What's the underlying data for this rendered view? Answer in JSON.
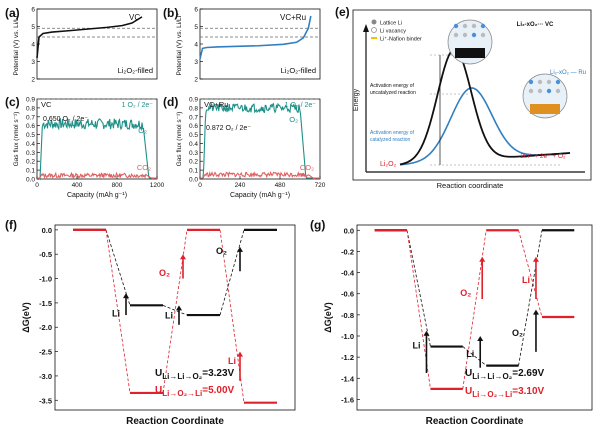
{
  "chart_data": [
    {
      "panel": "(a)",
      "type": "line",
      "ylabel": "Potential (V) vs. Li/Li⁺",
      "ylim": [
        2,
        6
      ],
      "yticks": [
        "2",
        "3",
        "4",
        "5",
        "6"
      ],
      "xlim": [
        0,
        1200
      ],
      "legend": "VC",
      "annotation": "Li₂O₂-filled",
      "dashed_lines": [
        4.9,
        4.4
      ],
      "series": [
        {
          "name": "VC",
          "color": "#111111",
          "x": [
            0,
            20,
            60,
            150,
            300,
            500,
            700,
            850,
            950,
            1050
          ],
          "y": [
            3.2,
            4.4,
            4.6,
            4.68,
            4.75,
            4.85,
            4.95,
            5.05,
            5.2,
            5.55
          ]
        }
      ]
    },
    {
      "panel": "(b)",
      "type": "line",
      "ylabel": "Potential (V) vs. Li/Li⁺",
      "ylim": [
        2,
        6
      ],
      "yticks": [
        "2",
        "3",
        "4",
        "5",
        "6"
      ],
      "xlim": [
        0,
        720
      ],
      "legend": "VC+Ru",
      "annotation": "Li₂O₂-filled",
      "dashed_lines": [
        4.9,
        4.4
      ],
      "series": [
        {
          "name": "VC+Ru",
          "color": "#2f7fc1",
          "x": [
            0,
            15,
            40,
            100,
            200,
            350,
            500,
            580,
            620,
            650,
            665
          ],
          "y": [
            3.15,
            3.75,
            3.8,
            3.83,
            3.86,
            3.9,
            3.98,
            4.1,
            4.35,
            4.9,
            5.6
          ]
        }
      ]
    },
    {
      "panel": "(c)",
      "type": "line",
      "ylabel": "Gas flux (nmol s⁻¹)",
      "xlabel": "Capacity (mAh g⁻¹)",
      "ylim": [
        0,
        0.9
      ],
      "yticks": [
        "0.0",
        "0.1",
        "0.2",
        "0.3",
        "0.4",
        "0.5",
        "0.6",
        "0.7",
        "0.8",
        "0.9"
      ],
      "xlim": [
        0,
        1200
      ],
      "xticks": [
        "0",
        "400",
        "800",
        "1200"
      ],
      "label": "VC",
      "ratio_ref": "1 O₂ / 2e⁻",
      "ratio_measured": "0.650 O₂ / 2e⁻",
      "series": [
        {
          "name": "O₂",
          "color": "#1e9088",
          "level": 0.62,
          "start": 30,
          "end": 1060
        },
        {
          "name": "CO₂",
          "color": "#e06060",
          "level": 0.04,
          "start": 20,
          "end": 1100
        }
      ]
    },
    {
      "panel": "(d)",
      "type": "line",
      "ylabel": "Gas flux (nmol s⁻¹)",
      "xlabel": "Capacity (mAh g⁻¹)",
      "ylim": [
        0,
        0.9
      ],
      "yticks": [
        "0.0",
        "0.1",
        "0.2",
        "0.3",
        "0.4",
        "0.5",
        "0.6",
        "0.7",
        "0.8",
        "0.9"
      ],
      "xlim": [
        0,
        720
      ],
      "xticks": [
        "0",
        "240",
        "480",
        "720"
      ],
      "label": "VC+Ru",
      "ratio_ref": "1 O₂ / 2e⁻",
      "ratio_measured": "0.872 O₂ / 2e⁻",
      "series": [
        {
          "name": "O₂",
          "color": "#1e9088",
          "level": 0.8,
          "start": 20,
          "end": 600
        },
        {
          "name": "CO₂",
          "color": "#e06060",
          "level": 0.05,
          "start": 15,
          "end": 650
        }
      ]
    },
    {
      "panel": "(e)",
      "type": "line",
      "ylabel": "Energy",
      "xlabel": "Reaction  coordinate",
      "labels": {
        "legend_lattice": "Lattice Li",
        "legend_vacancy": "Li vacancy",
        "legend_binder": "Li⁺-Nafion binder",
        "top_state": "Li₂-xO₂··· VC",
        "ru_state": "Li₂-xO₂ — Ru",
        "uncat": "Activation energy of uncatalyzed reaction",
        "cat": "Activation energy of catalyzed reaction",
        "start": "Li₂O₂",
        "end": "2Li⁺ + 2e⁻ + O₂"
      }
    },
    {
      "panel": "(f)",
      "type": "line",
      "ylabel": "ΔG(eV)",
      "xlabel": "Reaction Coordinate",
      "ylim": [
        -3.7,
        0.1
      ],
      "yticks": [
        "0.0",
        "-0.5",
        "-1.0",
        "-1.5",
        "-2.0",
        "-2.5",
        "-3.0",
        "-3.5"
      ],
      "black_levels": [
        0,
        -1.55,
        -1.75,
        0
      ],
      "red_levels": [
        0,
        -3.35,
        0,
        -3.55
      ],
      "step_labels": [
        "Li",
        "Li",
        "O₂",
        "O₂",
        "Li"
      ],
      "u_black": "U",
      "u_black_sub": "Li→Li→O₂",
      "u_black_val": "=3.23V",
      "u_red": "U",
      "u_red_sub": "Li→O₂→Li",
      "u_red_val": "=5.00V"
    },
    {
      "panel": "(g)",
      "type": "line",
      "ylabel": "ΔG(eV)",
      "xlabel": "Reaction Coordinate",
      "ylim": [
        -1.7,
        0.05
      ],
      "yticks": [
        "0.0",
        "-0.2",
        "-0.4",
        "-0.6",
        "-0.8",
        "-1.0",
        "-1.2",
        "-1.4",
        "-1.6"
      ],
      "black_levels": [
        0,
        -1.1,
        -1.28,
        0
      ],
      "red_levels": [
        0,
        -1.5,
        0,
        -0.82
      ],
      "step_labels": [
        "Li",
        "Li",
        "O₂",
        "O₂",
        "Li"
      ],
      "u_black": "U",
      "u_black_sub": "Li→Li→O₂",
      "u_black_val": "=2.69V",
      "u_red": "U",
      "u_red_sub": "Li→O₂→Li",
      "u_red_val": "=3.10V"
    }
  ],
  "colors": {
    "black": "#111111",
    "blue": "#2f7fc1",
    "teal": "#1e9088",
    "pink": "#e06060",
    "red": "#e0202a",
    "gray": "#888888"
  }
}
